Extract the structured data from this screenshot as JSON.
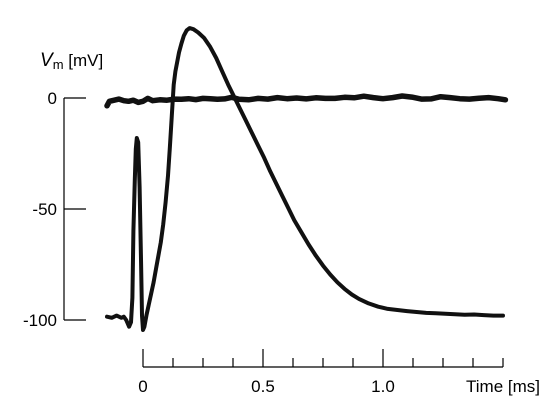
{
  "chart_data": {
    "type": "line",
    "title": "",
    "ylabel": {
      "symbol": "V",
      "subscript": "m",
      "unit": " [mV]"
    },
    "xlabel": "Time [ms]",
    "xlim": [
      -0.03,
      1.63
    ],
    "ylim": [
      -105,
      32
    ],
    "y_ticks": [
      0,
      -50,
      -100
    ],
    "y_tick_labels": [
      "0",
      "-50",
      "-100"
    ],
    "x_ticks": [
      0,
      0.5,
      1.0
    ],
    "x_tick_labels": [
      "0",
      "0.5",
      "1.0"
    ],
    "x_minor_step": 0.125,
    "x_minor_max": 1.5,
    "grid": false,
    "series": [
      {
        "style": "thick",
        "x": [
          -0.15,
          -0.14,
          -0.12,
          -0.1,
          -0.08,
          -0.06,
          -0.04,
          -0.02,
          0.0,
          0.02,
          0.04,
          0.07,
          0.1,
          0.13,
          0.16,
          0.19,
          0.22,
          0.25,
          0.28,
          0.31,
          0.34,
          0.37,
          0.4,
          0.44,
          0.48,
          0.52,
          0.56,
          0.6,
          0.64,
          0.68,
          0.72,
          0.76,
          0.8,
          0.84,
          0.88,
          0.92,
          0.96,
          1.0,
          1.04,
          1.08,
          1.12,
          1.16,
          1.2,
          1.24,
          1.28,
          1.32,
          1.36,
          1.4,
          1.44,
          1.48,
          1.51
        ],
        "y": [
          -3.5,
          -1.5,
          -1.0,
          -0.5,
          -1.2,
          -1.5,
          -1.0,
          -2.0,
          -1.5,
          -0.2,
          -1.2,
          -0.8,
          -1.0,
          -0.5,
          -0.6,
          -0.3,
          -0.7,
          -0.2,
          -0.3,
          -0.6,
          -0.4,
          0.3,
          -0.6,
          -0.8,
          -0.2,
          -0.5,
          0.2,
          -0.3,
          0.0,
          -0.4,
          0.1,
          -0.2,
          -0.2,
          0.3,
          0.1,
          0.8,
          0.2,
          -0.3,
          0.2,
          0.9,
          0.4,
          -0.5,
          -0.4,
          0.6,
          0.2,
          -0.3,
          -0.5,
          -0.1,
          0.2,
          -0.3,
          -0.8
        ]
      },
      {
        "style": "medium",
        "x": [
          -0.15,
          -0.13,
          -0.11,
          -0.09,
          -0.08,
          -0.07,
          -0.058,
          -0.05,
          -0.044,
          -0.04,
          -0.034,
          -0.03,
          -0.026,
          -0.02,
          -0.014,
          -0.008,
          -0.004,
          0.0,
          0.006,
          0.014,
          0.024,
          0.034,
          0.044,
          0.054,
          0.064,
          0.074,
          0.084,
          0.094,
          0.104,
          0.112,
          0.12,
          0.128,
          0.135,
          0.142,
          0.15,
          0.16,
          0.17,
          0.182,
          0.194,
          0.21,
          0.23,
          0.255,
          0.28,
          0.305,
          0.33,
          0.355,
          0.38,
          0.405,
          0.43,
          0.455,
          0.48,
          0.505,
          0.53,
          0.555,
          0.58,
          0.605,
          0.63,
          0.66,
          0.69,
          0.72,
          0.75,
          0.78,
          0.81,
          0.84,
          0.87,
          0.9,
          0.94,
          0.98,
          1.02,
          1.06,
          1.1,
          1.14,
          1.18,
          1.22,
          1.26,
          1.3,
          1.34,
          1.38,
          1.42,
          1.46,
          1.5
        ],
        "y": [
          -98.5,
          -99.0,
          -98.0,
          -99.0,
          -98.5,
          -100.0,
          -103.0,
          -101.0,
          -90.0,
          -60.0,
          -37.0,
          -23.0,
          -18.0,
          -20.0,
          -40.0,
          -75.0,
          -98.0,
          -104.5,
          -103.0,
          -98.0,
          -93.0,
          -88.0,
          -83.0,
          -77.0,
          -71.0,
          -65.0,
          -57.0,
          -47.0,
          -35.0,
          -22.0,
          -8.0,
          6.0,
          12.0,
          16.0,
          20.5,
          24.5,
          28.0,
          30.5,
          31.5,
          31.0,
          29.5,
          27.0,
          23.0,
          18.0,
          12.0,
          6.0,
          0.5,
          -5.0,
          -10.5,
          -16.0,
          -21.5,
          -27.0,
          -33.0,
          -38.5,
          -44.0,
          -49.5,
          -55.0,
          -60.5,
          -66.0,
          -71.0,
          -75.5,
          -79.5,
          -83.0,
          -86.0,
          -88.5,
          -90.5,
          -92.5,
          -94.0,
          -95.0,
          -95.5,
          -96.0,
          -96.4,
          -96.8,
          -97.0,
          -97.2,
          -97.4,
          -97.6,
          -97.5,
          -97.8,
          -98.0,
          -98.0
        ]
      }
    ]
  }
}
